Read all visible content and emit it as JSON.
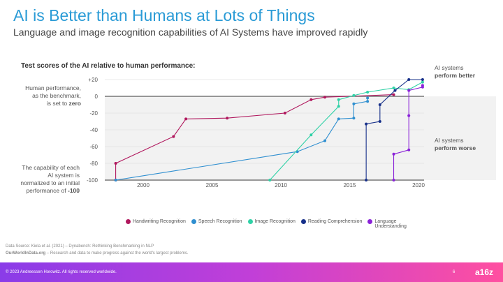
{
  "header": {
    "title": "AI is Better than Humans at Lots of Things",
    "subtitle": "Language and image recognition capabilities of AI Systems have improved rapidly"
  },
  "notes": {
    "human_line1": "Human performance,",
    "human_line2": "as the benchmark,",
    "human_line3": "is set to",
    "human_bold": "zero",
    "cap_line1": "The capability of each",
    "cap_line2": "AI system is",
    "cap_line3": "normalized to an initial",
    "cap_line4": "performance of",
    "cap_bold": "-100",
    "better1": "AI systems",
    "better2": "perform better",
    "worse1": "AI systems",
    "worse2": "perform worse"
  },
  "chart_data": {
    "type": "line",
    "title": "Test scores of the AI relative to human performance:",
    "xlim": [
      1997,
      2020.5
    ],
    "ylim": [
      -100,
      20
    ],
    "xticks": [
      "2000",
      "2005",
      "2010",
      "2015",
      "2020"
    ],
    "yticks": [
      "+20",
      "0",
      "-20",
      "-40",
      "-60",
      "-80",
      "-100"
    ],
    "grid": true,
    "legend": "bottom",
    "series": [
      {
        "name": "Handwriting Recognition",
        "color": "#b0175d",
        "points": [
          [
            1998,
            -100
          ],
          [
            1998,
            -80
          ],
          [
            2002.2,
            -48
          ],
          [
            2003.1,
            -27
          ],
          [
            2006.1,
            -26
          ],
          [
            2010.3,
            -20
          ],
          [
            2012.2,
            -4
          ],
          [
            2013.2,
            -1
          ],
          [
            2018.2,
            2
          ]
        ]
      },
      {
        "name": "Speech Recognition",
        "color": "#2f8fd0",
        "points": [
          [
            1998,
            -100
          ],
          [
            2011.2,
            -66
          ],
          [
            2013.2,
            -53
          ],
          [
            2014.2,
            -27
          ],
          [
            2015.3,
            -26
          ],
          [
            2015.3,
            -9
          ],
          [
            2016.3,
            -6
          ],
          [
            2016.3,
            -2
          ]
        ]
      },
      {
        "name": "Image Recognition",
        "color": "#2fd1a6",
        "points": [
          [
            2009.2,
            -100
          ],
          [
            2012.2,
            -46
          ],
          [
            2014.2,
            -12
          ],
          [
            2014.2,
            -4
          ],
          [
            2015.3,
            1
          ],
          [
            2016.3,
            5
          ],
          [
            2018.2,
            10
          ],
          [
            2019.3,
            8
          ],
          [
            2020.3,
            17
          ]
        ]
      },
      {
        "name": "Reading Comprehension",
        "color": "#17308a",
        "points": [
          [
            2016.2,
            -100
          ],
          [
            2016.2,
            -33
          ],
          [
            2017.2,
            -30
          ],
          [
            2017.2,
            -10
          ],
          [
            2018.3,
            7
          ],
          [
            2019.3,
            20
          ],
          [
            2020.3,
            20
          ]
        ]
      },
      {
        "name": "Language Understanding",
        "color": "#8a22d8",
        "points": [
          [
            2018.2,
            -100
          ],
          [
            2018.2,
            -69
          ],
          [
            2019.3,
            -64
          ],
          [
            2019.3,
            -23
          ],
          [
            2019.3,
            7
          ],
          [
            2020.3,
            11
          ],
          [
            2020.3,
            13
          ]
        ]
      }
    ]
  },
  "legend": {
    "items": [
      "Handwriting Recognition",
      "Speech Recognition",
      "Image Recognition",
      "Reading Comprehension",
      "Language Understanding"
    ]
  },
  "source": {
    "line1": "Data Source: Kiela et al. (2021) – Dynabench: Rethinking Benchmarking in NLP",
    "line2_bold": "OurWorldInData.org",
    "line2": " – Research and data to make progress against the world's largest problems."
  },
  "footer": {
    "copyright": "© 2023 Andreessen Horowitz. All rights reserved worldwide.",
    "page": "6",
    "logo": "a16z"
  }
}
